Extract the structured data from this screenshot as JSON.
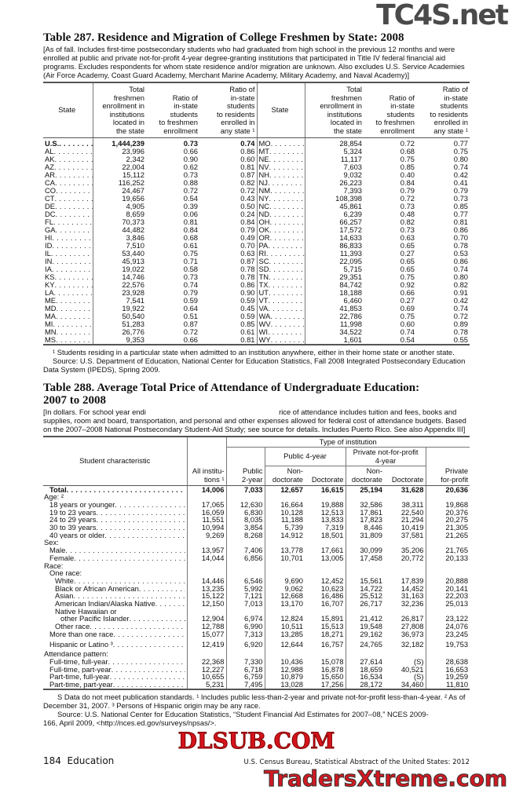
{
  "watermarks": {
    "top": "TC4S.net",
    "middle": "DLSUB.COM",
    "bottom": "TradersXtreme.com"
  },
  "table287": {
    "title": "Table 287. Residence and Migration of College Freshmen by State: 2008",
    "note": "[As of fall. Includes first-time postsecondary students who had graduated from high school in the previous 12 months and were enrolled at public and private not-for-profit 4-year degree-granting institutions that participated in Title IV federal financial aid programs. Excludes respondents for whom state residence and/or migration are unknown. Also excludes U.S. Service Academies (Air Force Academy, Coast Guard Academy, Merchant Marine Academy, Military Academy, and Naval Academy)]",
    "headers": [
      "State",
      "Total\nfreshmen\nenrollment in\ninstitutions\nlocated in\nthe state",
      "Ratio of\nin-state\nstudents\nto freshmen\nenrollment",
      "Ratio of\nin-state\nstudents\nto residents\nenrolled in\nany state ¹"
    ],
    "left_rows": [
      [
        "U.S.",
        "1,444,239",
        "0.73",
        "0.74"
      ],
      [
        "AL",
        "23,996",
        "0.66",
        "0.86"
      ],
      [
        "AK",
        "2,342",
        "0.90",
        "0.60"
      ],
      [
        "AZ",
        "22,004",
        "0.62",
        "0.81"
      ],
      [
        "AR",
        "15,112",
        "0.73",
        "0.87"
      ],
      [
        "CA",
        "116,252",
        "0.88",
        "0.82"
      ],
      [
        "CO",
        "24,467",
        "0.72",
        "0.72"
      ],
      [
        "CT",
        "19,656",
        "0.54",
        "0.43"
      ],
      [
        "DE",
        "4,905",
        "0.39",
        "0.50"
      ],
      [
        "DC",
        "8,659",
        "0.06",
        "0.24"
      ],
      [
        "FL",
        "70,373",
        "0.81",
        "0.84"
      ],
      [
        "GA",
        "44,482",
        "0.84",
        "0.79"
      ],
      [
        "HI",
        "3,846",
        "0.68",
        "0.49"
      ],
      [
        "ID",
        "7,510",
        "0.61",
        "0.70"
      ],
      [
        "IL",
        "53,440",
        "0.75",
        "0.63"
      ],
      [
        "IN",
        "45,913",
        "0.71",
        "0.87"
      ],
      [
        "IA",
        "19,022",
        "0.58",
        "0.78"
      ],
      [
        "KS",
        "14,746",
        "0.73",
        "0.78"
      ],
      [
        "KY",
        "22,576",
        "0.74",
        "0.86"
      ],
      [
        "LA",
        "23,928",
        "0.79",
        "0.90"
      ],
      [
        "ME",
        "7,541",
        "0.59",
        "0.59"
      ],
      [
        "MD",
        "19,922",
        "0.64",
        "0.45"
      ],
      [
        "MA",
        "50,540",
        "0.51",
        "0.59"
      ],
      [
        "MI",
        "51,283",
        "0.87",
        "0.85"
      ],
      [
        "MN",
        "26,776",
        "0.72",
        "0.61"
      ],
      [
        "MS",
        "9,353",
        "0.66",
        "0.81"
      ]
    ],
    "right_rows": [
      [
        "MO",
        "28,854",
        "0.72",
        "0.77"
      ],
      [
        "MT",
        "5,324",
        "0.68",
        "0.75"
      ],
      [
        "NE",
        "11,117",
        "0.75",
        "0.80"
      ],
      [
        "NV",
        "7,603",
        "0.85",
        "0.74"
      ],
      [
        "NH",
        "9,032",
        "0.40",
        "0.42"
      ],
      [
        "NJ",
        "26,223",
        "0.84",
        "0.41"
      ],
      [
        "NM",
        "7,393",
        "0.79",
        "0.79"
      ],
      [
        "NY",
        "108,398",
        "0.72",
        "0.73"
      ],
      [
        "NC",
        "45,861",
        "0.73",
        "0.85"
      ],
      [
        "ND",
        "6,239",
        "0.48",
        "0.77"
      ],
      [
        "OH",
        "66,257",
        "0.82",
        "0.81"
      ],
      [
        "OK",
        "17,572",
        "0.73",
        "0.86"
      ],
      [
        "OR",
        "14,633",
        "0.63",
        "0.70"
      ],
      [
        "PA",
        "86,833",
        "0.65",
        "0.78"
      ],
      [
        "RI",
        "11,393",
        "0.27",
        "0.53"
      ],
      [
        "SC",
        "22,095",
        "0.65",
        "0.86"
      ],
      [
        "SD",
        "5,715",
        "0.65",
        "0.74"
      ],
      [
        "TN",
        "29,351",
        "0.75",
        "0.80"
      ],
      [
        "TX",
        "84,742",
        "0.92",
        "0.82"
      ],
      [
        "UT",
        "18,188",
        "0.66",
        "0.91"
      ],
      [
        "VT",
        "6,460",
        "0.27",
        "0.42"
      ],
      [
        "VA",
        "41,853",
        "0.69",
        "0.74"
      ],
      [
        "WA",
        "22,786",
        "0.75",
        "0.72"
      ],
      [
        "WV",
        "11,998",
        "0.60",
        "0.89"
      ],
      [
        "WI",
        "34,522",
        "0.74",
        "0.78"
      ],
      [
        "WY",
        "1,601",
        "0.54",
        "0.55"
      ]
    ],
    "footnote": "¹ Students residing in a particular state when admitted to an institution anywhere, either in their home state or another state.",
    "source": "Source: U.S. Department of Education, National Center for Education Statistics, Fall 2008 Integrated Postsecondary Education Data System (IPEDS), Spring 2009."
  },
  "table288": {
    "title_line1": "Table 288. Average Total Price of Attendance of Undergraduate Education:",
    "title_line2": "2007 to 2008",
    "note": "[In dollars. For school year endi                                                                 rice of attendance includes tuition and fees, books and supplies, room and board, transportation, and personal and other expenses allowed for federal cost of attendance budgets. Based on the 2007–2008 National Postsecondary Student-Aid Study; see source for details. Includes Puerto Rico. See also Appendix III]",
    "headers": {
      "characteristic": "Student characteristic",
      "all": "All institu-\ntions ¹",
      "type": "Type of institution",
      "public2": "Public\n2-year",
      "public4": "Public 4-year",
      "private_nfp": "Private not-for-profit\n4-year",
      "nondoc": "Non-\ndoctorate",
      "doc": "Doctorate",
      "forprofit": "Private\nfor-profit"
    },
    "rows": [
      {
        "label": "Total",
        "level": 1,
        "bold": true,
        "values": [
          "14,006",
          "7,033",
          "12,657",
          "16,615",
          "25,194",
          "31,628",
          "20,636"
        ]
      },
      {
        "label": "Age: ²",
        "level": 0,
        "values": null
      },
      {
        "label": "18 years or younger",
        "level": 1,
        "values": [
          "17,065",
          "12,630",
          "16,664",
          "19,888",
          "32,586",
          "38,311",
          "19,868"
        ]
      },
      {
        "label": "19 to 23 years",
        "level": 1,
        "values": [
          "16,059",
          "6,830",
          "10,128",
          "12,513",
          "17,861",
          "22,540",
          "20,376"
        ]
      },
      {
        "label": "24 to 29 years",
        "level": 1,
        "values": [
          "11,551",
          "8,035",
          "11,188",
          "13,833",
          "17,823",
          "21,294",
          "20,275"
        ]
      },
      {
        "label": "30 to 39 years",
        "level": 1,
        "values": [
          "10,994",
          "3,854",
          "5,739",
          "7,319",
          "8,446",
          "10,419",
          "21,305"
        ]
      },
      {
        "label": "40 years or older",
        "level": 1,
        "values": [
          "9,269",
          "8,268",
          "14,912",
          "18,501",
          "31,809",
          "37,581",
          "21,265"
        ]
      },
      {
        "label": "Sex:",
        "level": 0,
        "values": null
      },
      {
        "label": "Male",
        "level": 1,
        "values": [
          "13,957",
          "7,406",
          "13,778",
          "17,661",
          "30,099",
          "35,206",
          "21,765"
        ]
      },
      {
        "label": "Female",
        "level": 1,
        "values": [
          "14,044",
          "6,856",
          "10,701",
          "13,005",
          "17,458",
          "20,772",
          "20,133"
        ]
      },
      {
        "label": "Race:",
        "level": 0,
        "values": null
      },
      {
        "label": "One race:",
        "level": 1,
        "values": null
      },
      {
        "label": "White",
        "level": 2,
        "values": [
          "14,446",
          "6,546",
          "9,690",
          "12,452",
          "15,561",
          "17,839",
          "20,888"
        ]
      },
      {
        "label": "Black or African American",
        "level": 2,
        "values": [
          "13,235",
          "5,992",
          "9,062",
          "10,623",
          "14,722",
          "14,452",
          "20,141"
        ]
      },
      {
        "label": "Asian",
        "level": 2,
        "values": [
          "15,122",
          "7,121",
          "12,668",
          "16,486",
          "25,512",
          "31,163",
          "22,203"
        ]
      },
      {
        "label": "American Indian/Alaska Native",
        "level": 2,
        "values": [
          "12,150",
          "7,013",
          "13,170",
          "16,707",
          "26,717",
          "32,236",
          "25,013"
        ]
      },
      {
        "label": "Native Hawaiian or",
        "level": 2,
        "values": null
      },
      {
        "label": "other Pacific Islander",
        "level": 3,
        "values": [
          "12,904",
          "6,974",
          "12,824",
          "15,891",
          "21,412",
          "26,817",
          "23,122"
        ]
      },
      {
        "label": "Other race",
        "level": 2,
        "values": [
          "12,788",
          "6,990",
          "10,511",
          "15,513",
          "19,548",
          "27,808",
          "24,076"
        ]
      },
      {
        "label": "More than one race",
        "level": 1,
        "values": [
          "15,077",
          "7,313",
          "13,285",
          "18,271",
          "29,162",
          "36,973",
          "23,245"
        ]
      },
      {
        "label": "Hispanic or Latino ³",
        "level": 1,
        "values": [
          "12,419",
          "6,920",
          "12,644",
          "16,757",
          "24,765",
          "32,182",
          "19,753"
        ]
      },
      {
        "label": "Attendance pattern:",
        "level": 0,
        "values": null
      },
      {
        "label": "Full-time, full-year",
        "level": 1,
        "values": [
          "22,368",
          "7,330",
          "10,436",
          "15,078",
          "27,614",
          "(S)",
          "28,638"
        ]
      },
      {
        "label": "Full-time, part-year",
        "level": 1,
        "values": [
          "12,227",
          "6,718",
          "12,988",
          "16,878",
          "18,659",
          "40,521",
          "16,653"
        ]
      },
      {
        "label": "Part-time, full-year",
        "level": 1,
        "values": [
          "10,655",
          "6,759",
          "10,879",
          "15,650",
          "16,534",
          "(S)",
          "19,259"
        ]
      },
      {
        "label": "Part-time, part-year",
        "level": 1,
        "values": [
          "5,231",
          "7,495",
          "13,028",
          "17,256",
          "28,172",
          "34,460",
          "11,810"
        ]
      }
    ],
    "footnote": "S Data do not meet publication standards. ¹ Includes public less-than-2-year and private not-for-profit less-than-4-year. ² As of December 31, 2007. ³ Persons of Hispanic origin may be any race.",
    "source": "Source: U.S. National Center for Education Statistics, “Student Financial Aid Estimates for 2007–08,” NCES 2009-166, April 2009, <http://nces.ed.gov/surveys/npsas/>."
  },
  "footer": {
    "page": "184  Education",
    "credit": "U.S. Census Bureau, Statistical Abstract of the United States: 2012"
  }
}
